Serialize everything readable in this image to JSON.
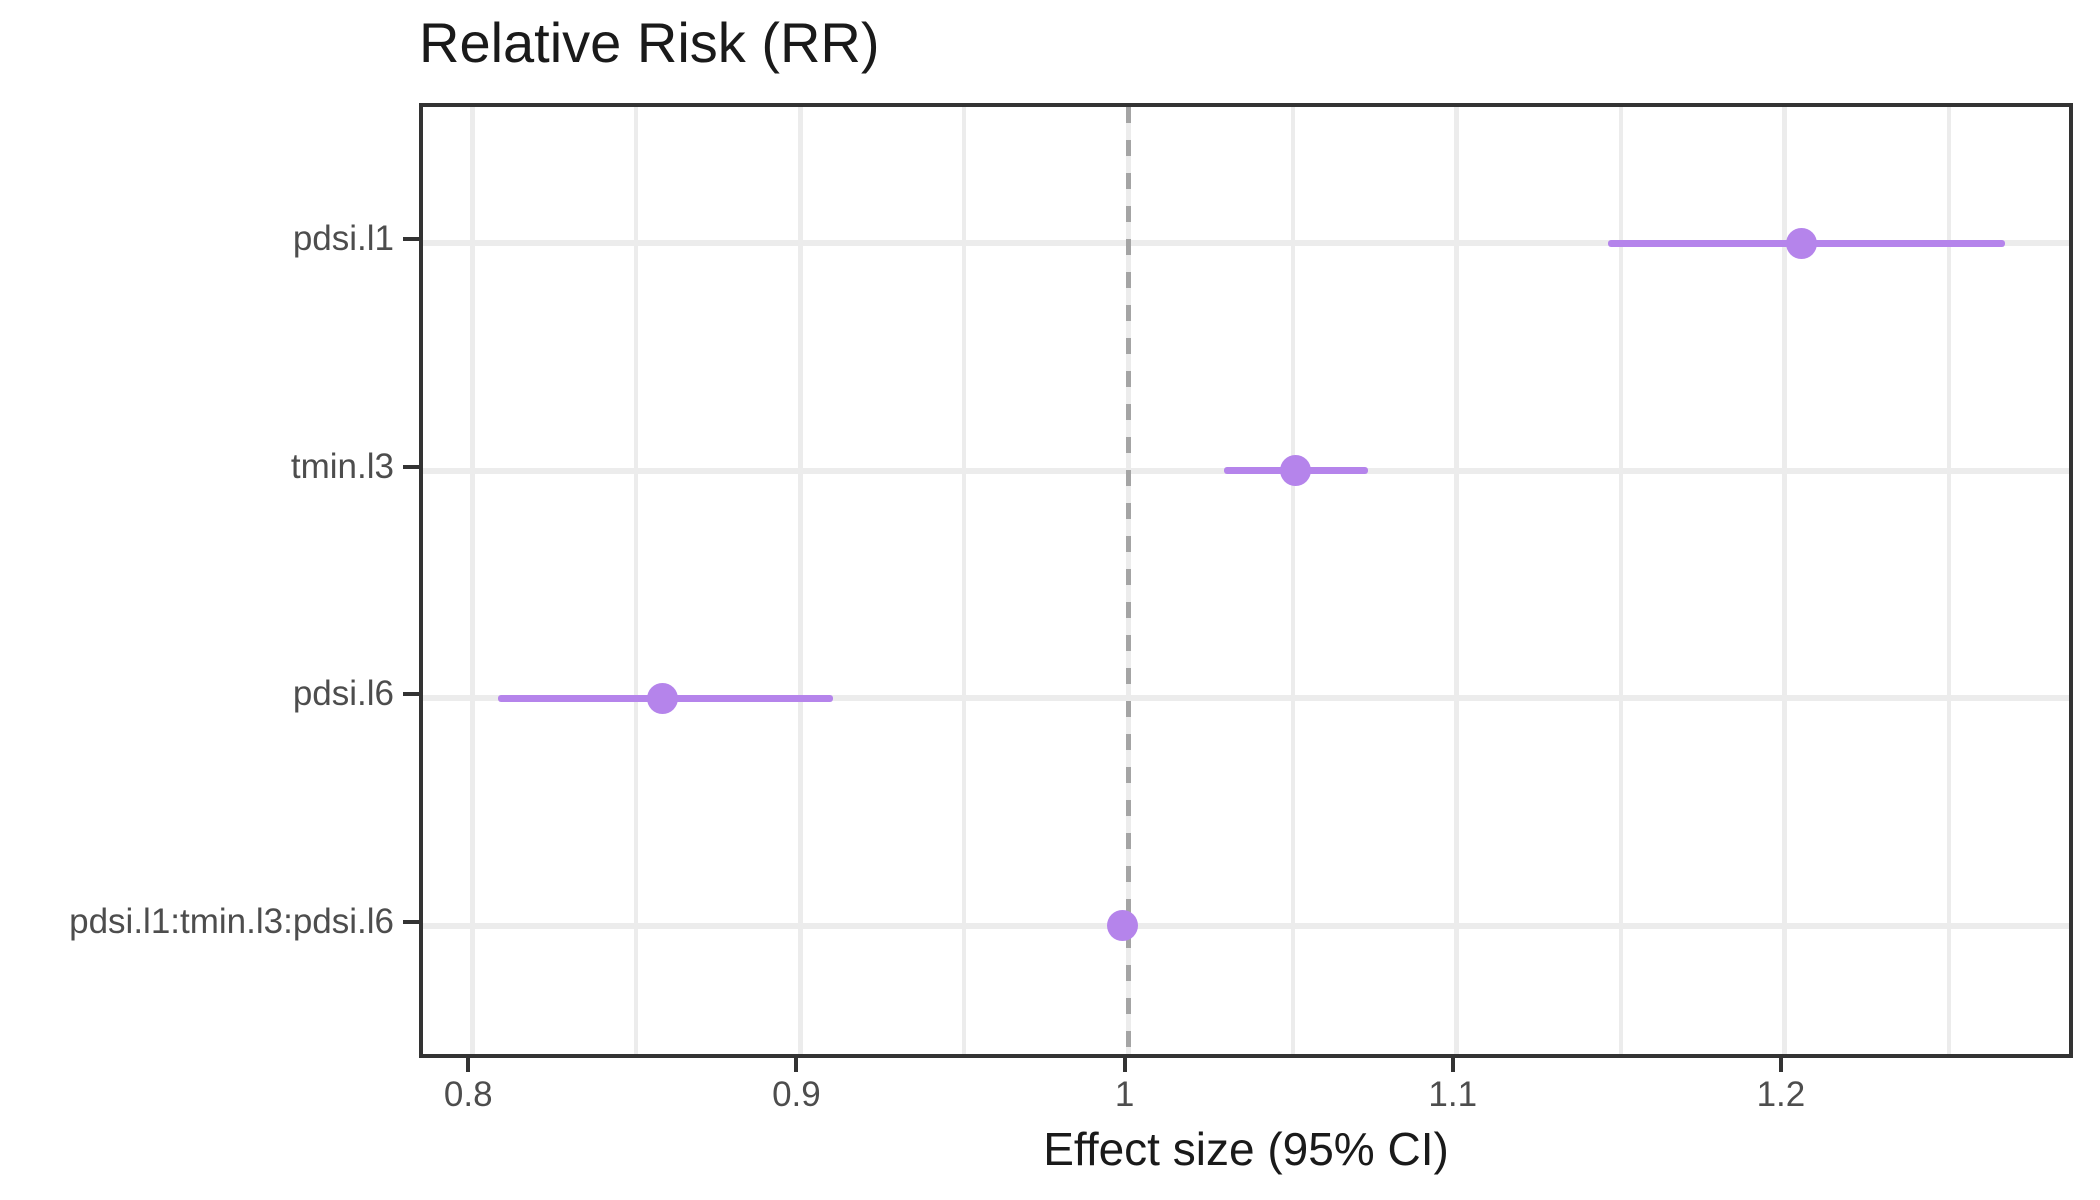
{
  "title": "Relative Risk (RR)",
  "xlabel": "Effect size (95% CI)",
  "colors": {
    "point": "#b584eb",
    "ci_line": "#b584eb",
    "reference_line": "#a4a4a4",
    "gridline": "#ececec",
    "panel_border": "#333333",
    "axis_text": "#4d4d4d",
    "title_text": "#1a1a1a",
    "background": "#ffffff"
  },
  "chart_data": {
    "type": "scatter",
    "subtype": "forest-plot",
    "title": "Relative Risk (RR)",
    "xlabel": "Effect size (95% CI)",
    "ylabel": "",
    "xlim": [
      0.785,
      1.289
    ],
    "x_major_ticks": [
      0.8,
      0.9,
      1.0,
      1.1,
      1.2
    ],
    "x_tick_labels": [
      "0.8",
      "0.9",
      "1",
      "1.1",
      "1.2"
    ],
    "x_minor_ticks": [
      0.85,
      0.95,
      1.05,
      1.15,
      1.25
    ],
    "reference_line_x": 1.0,
    "reference_line_style": "dashed",
    "grid": true,
    "legend": false,
    "categories": [
      "pdsi.l1",
      "tmin.l3",
      "pdsi.l6",
      "pdsi.l1:tmin.l3:pdsi.l6"
    ],
    "series": [
      {
        "name": "Relative Risk (95% CI)",
        "points": [
          {
            "label": "pdsi.l1",
            "estimate": 1.205,
            "ci_low": 1.146,
            "ci_high": 1.267
          },
          {
            "label": "tmin.l3",
            "estimate": 1.051,
            "ci_low": 1.029,
            "ci_high": 1.073
          },
          {
            "label": "pdsi.l6",
            "estimate": 0.858,
            "ci_low": 0.808,
            "ci_high": 0.91
          },
          {
            "label": "pdsi.l1:tmin.l3:pdsi.l6",
            "estimate": 0.998,
            "ci_low": 0.995,
            "ci_high": 1.001
          }
        ]
      }
    ]
  }
}
